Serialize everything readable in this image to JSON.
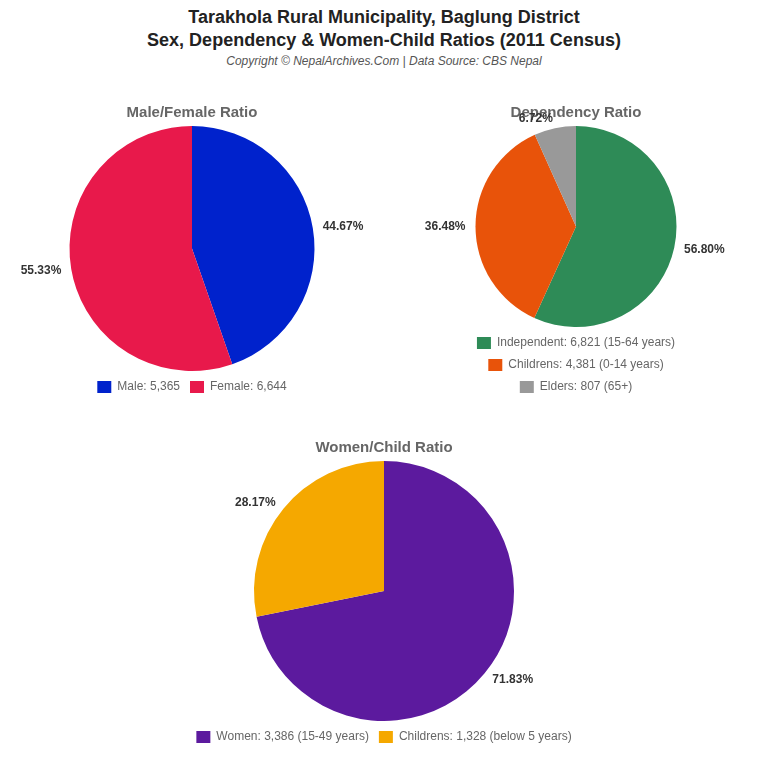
{
  "title": [
    "Tarakhola Rural Municipality, Baglung District",
    "Sex, Dependency & Women-Child Ratios (2011 Census)"
  ],
  "subtitle": "Copyright © NepalArchives.Com | Data Source: CBS Nepal",
  "chart_data": [
    {
      "type": "pie",
      "title": "Male/Female Ratio",
      "categories": [
        "Male: 5,365",
        "Female: 6,644"
      ],
      "values": [
        44.67,
        55.33
      ],
      "value_labels": [
        "44.67%",
        "55.33%"
      ],
      "colors": [
        "#0022cc",
        "#e8194b"
      ],
      "data_labels": true,
      "legend": "bottom"
    },
    {
      "type": "pie",
      "title": "Dependency Ratio",
      "categories": [
        "Independent: 6,821 (15-64 years)",
        "Childrens: 4,381 (0-14 years)",
        "Elders: 807 (65+)"
      ],
      "values": [
        56.8,
        36.48,
        6.72
      ],
      "value_labels": [
        "56.80%",
        "36.48%",
        "6.72%"
      ],
      "colors": [
        "#2e8b57",
        "#e8530a",
        "#999999"
      ],
      "data_labels": true,
      "legend": "bottom"
    },
    {
      "type": "pie",
      "title": "Women/Child Ratio",
      "categories": [
        "Women: 3,386 (15-49 years)",
        "Childrens: 1,328 (below 5 years)"
      ],
      "values": [
        71.83,
        28.17
      ],
      "value_labels": [
        "71.83%",
        "28.17%"
      ],
      "colors": [
        "#5c1a9e",
        "#f5a800"
      ],
      "data_labels": true,
      "legend": "bottom"
    }
  ]
}
